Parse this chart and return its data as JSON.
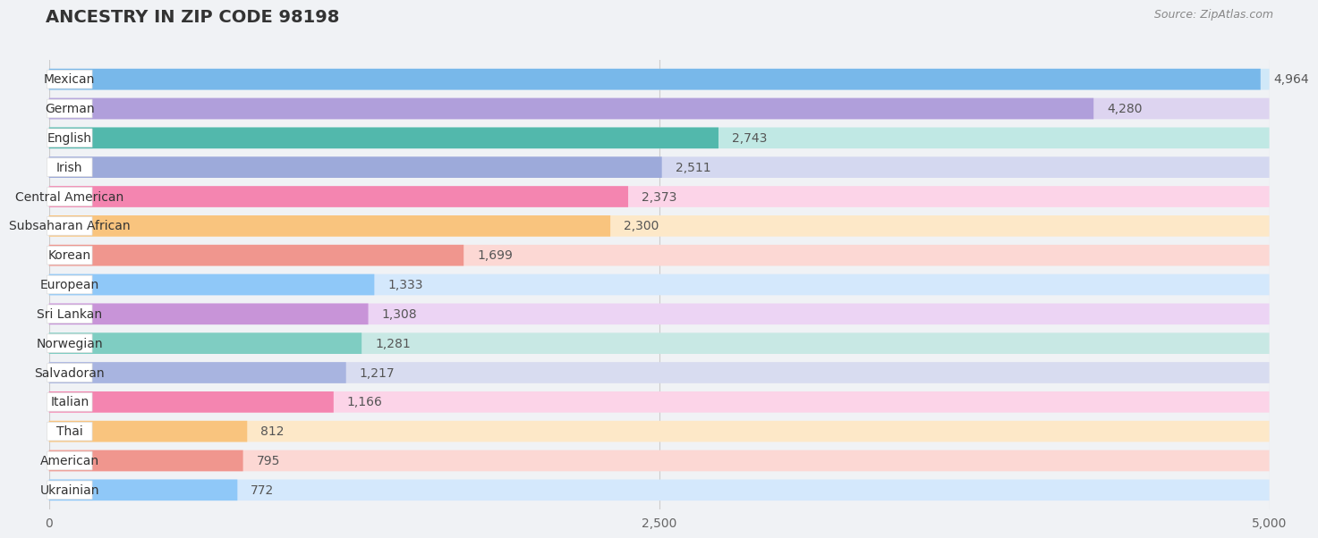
{
  "title": "ANCESTRY IN ZIP CODE 98198",
  "source": "Source: ZipAtlas.com",
  "categories": [
    "Mexican",
    "German",
    "English",
    "Irish",
    "Central American",
    "Subsaharan African",
    "Korean",
    "European",
    "Sri Lankan",
    "Norwegian",
    "Salvadoran",
    "Italian",
    "Thai",
    "American",
    "Ukrainian"
  ],
  "values": [
    4964,
    4280,
    2743,
    2511,
    2373,
    2300,
    1699,
    1333,
    1308,
    1281,
    1217,
    1166,
    812,
    795,
    772
  ],
  "bar_colors": [
    "#78b8ea",
    "#b09fdb",
    "#52b8ac",
    "#9daada",
    "#f485b0",
    "#f9c47e",
    "#f0968e",
    "#8fc8f8",
    "#c894d8",
    "#7fcdc2",
    "#a8b4e0",
    "#f485b0",
    "#f9c47e",
    "#f0968e",
    "#8fc8f8"
  ],
  "bar_bg_colors": [
    "#d0e8f8",
    "#ddd4f0",
    "#c0e8e4",
    "#d4d8f0",
    "#fcd4e8",
    "#fde8c8",
    "#fcd8d4",
    "#d4e8fc",
    "#ecd4f4",
    "#c8e8e4",
    "#d8dcf0",
    "#fcd4e8",
    "#fde8c8",
    "#fcd8d4",
    "#d4e8fc"
  ],
  "xlim": [
    0,
    5000
  ],
  "xticks": [
    0,
    2500,
    5000
  ],
  "background_color": "#f0f2f5",
  "title_fontsize": 14,
  "source_fontsize": 9,
  "label_fontsize": 10,
  "value_fontsize": 10
}
